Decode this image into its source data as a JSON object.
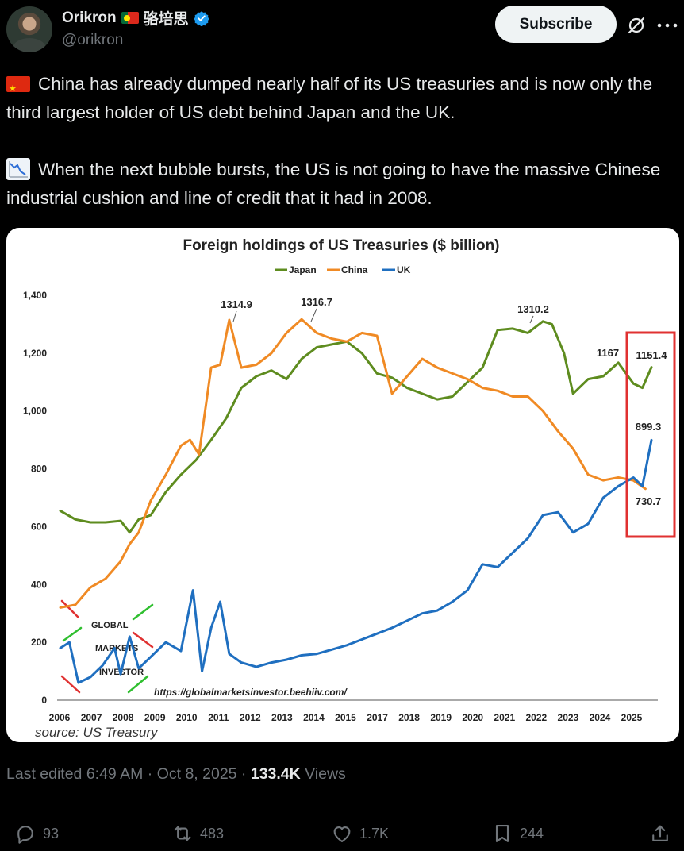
{
  "author": {
    "display_name": "Orikron",
    "chinese_name": "骆培思",
    "handle": "@orikron"
  },
  "header": {
    "subscribe_label": "Subscribe"
  },
  "tweet": {
    "paragraph_1": "China has already dumped nearly half of its US treasuries and is now only the third largest holder of US debt behind Japan and the UK.",
    "paragraph_2": "When the next bubble bursts, the US is not going to have the massive Chinese industrial cushion and line of credit that it had in 2008."
  },
  "chart_data": {
    "type": "line",
    "title": "Foreign holdings of US Treasuries ($ billion)",
    "legend": [
      "Japan",
      "China",
      "UK"
    ],
    "legend_position": "top-center",
    "ylim": [
      0,
      1400
    ],
    "yticks": [
      "0",
      "200",
      "400",
      "600",
      "800",
      "1,000",
      "1,200",
      "1,400"
    ],
    "xticks": [
      "2006",
      "2007",
      "2008",
      "2009",
      "2010",
      "2011",
      "2012",
      "2013",
      "2014",
      "2015",
      "2017",
      "2018",
      "2019",
      "2020",
      "2021",
      "2022",
      "2023",
      "2024",
      "2025"
    ],
    "colors": {
      "Japan": "#5e8c1f",
      "China": "#f08a24",
      "UK": "#1f6fc0",
      "highlight": "#e03131"
    },
    "annotations": [
      "1314.9",
      "1316.7",
      "1310.2",
      "1167",
      "1151.4",
      "899.3",
      "730.7"
    ],
    "source": "source: US Treasury",
    "url": "https://globalmarketsinvestor.beehiiv.com/",
    "watermark": [
      "GLOBAL",
      "MARKETS",
      "INVESTOR"
    ],
    "series": [
      {
        "name": "Japan",
        "x": [
          2006,
          2006.5,
          2007,
          2007.5,
          2008,
          2008.3,
          2008.6,
          2009,
          2009.5,
          2010,
          2010.5,
          2011,
          2011.5,
          2012,
          2012.5,
          2013,
          2013.5,
          2014,
          2014.5,
          2015,
          2015.5,
          2016,
          2016.5,
          2017,
          2017.5,
          2018,
          2018.5,
          2019,
          2019.5,
          2020,
          2020.5,
          2021,
          2021.5,
          2022,
          2022.3,
          2022.7,
          2023,
          2023.5,
          2024,
          2024.5,
          2025,
          2025.3,
          2025.6
        ],
        "values": [
          655,
          625,
          615,
          615,
          620,
          580,
          625,
          640,
          720,
          780,
          830,
          900,
          975,
          1080,
          1120,
          1140,
          1110,
          1180,
          1220,
          1230,
          1240,
          1200,
          1130,
          1115,
          1080,
          1060,
          1040,
          1050,
          1100,
          1150,
          1280,
          1285,
          1270,
          1310,
          1300,
          1200,
          1060,
          1110,
          1120,
          1167,
          1095,
          1080,
          1151.4
        ]
      },
      {
        "name": "China",
        "x": [
          2006,
          2006.5,
          2007,
          2007.5,
          2008,
          2008.3,
          2008.6,
          2009,
          2009.5,
          2010,
          2010.3,
          2010.6,
          2011,
          2011.3,
          2011.6,
          2012,
          2012.5,
          2013,
          2013.5,
          2014,
          2014.5,
          2015,
          2015.5,
          2016,
          2016.5,
          2017,
          2017.5,
          2018,
          2018.5,
          2019,
          2019.5,
          2020,
          2020.5,
          2021,
          2021.5,
          2022,
          2022.5,
          2023,
          2023.5,
          2024,
          2024.5,
          2025,
          2025.4
        ],
        "values": [
          320,
          330,
          390,
          420,
          480,
          540,
          580,
          690,
          780,
          880,
          900,
          850,
          1150,
          1160,
          1314.9,
          1150,
          1160,
          1200,
          1270,
          1316.7,
          1270,
          1250,
          1240,
          1270,
          1260,
          1060,
          1120,
          1180,
          1150,
          1130,
          1110,
          1080,
          1070,
          1050,
          1050,
          1000,
          930,
          870,
          780,
          760,
          770,
          760,
          730.7
        ]
      },
      {
        "name": "UK",
        "x": [
          2006,
          2006.3,
          2006.6,
          2007,
          2007.4,
          2007.8,
          2008,
          2008.3,
          2008.6,
          2009,
          2009.5,
          2010,
          2010.4,
          2010.7,
          2011,
          2011.3,
          2011.6,
          2012,
          2012.5,
          2013,
          2013.5,
          2014,
          2014.5,
          2015,
          2015.5,
          2016,
          2016.5,
          2017,
          2017.5,
          2018,
          2018.5,
          2019,
          2019.5,
          2020,
          2020.5,
          2021,
          2021.5,
          2022,
          2022.5,
          2023,
          2023.5,
          2024,
          2024.5,
          2025,
          2025.3,
          2025.6
        ],
        "values": [
          180,
          200,
          60,
          80,
          120,
          180,
          90,
          220,
          110,
          150,
          200,
          170,
          380,
          100,
          250,
          340,
          160,
          130,
          115,
          130,
          140,
          155,
          160,
          175,
          190,
          210,
          230,
          250,
          275,
          300,
          310,
          340,
          380,
          470,
          460,
          510,
          560,
          640,
          650,
          580,
          610,
          700,
          740,
          770,
          740,
          899.3
        ]
      }
    ]
  },
  "meta": {
    "edited": "Last edited 6:49 AM · Oct 8, 2025 · ",
    "views_count": "133.4K",
    "views_label": " Views"
  },
  "actions": {
    "replies": "93",
    "reposts": "483",
    "likes": "1.7K",
    "bookmarks": "244"
  }
}
